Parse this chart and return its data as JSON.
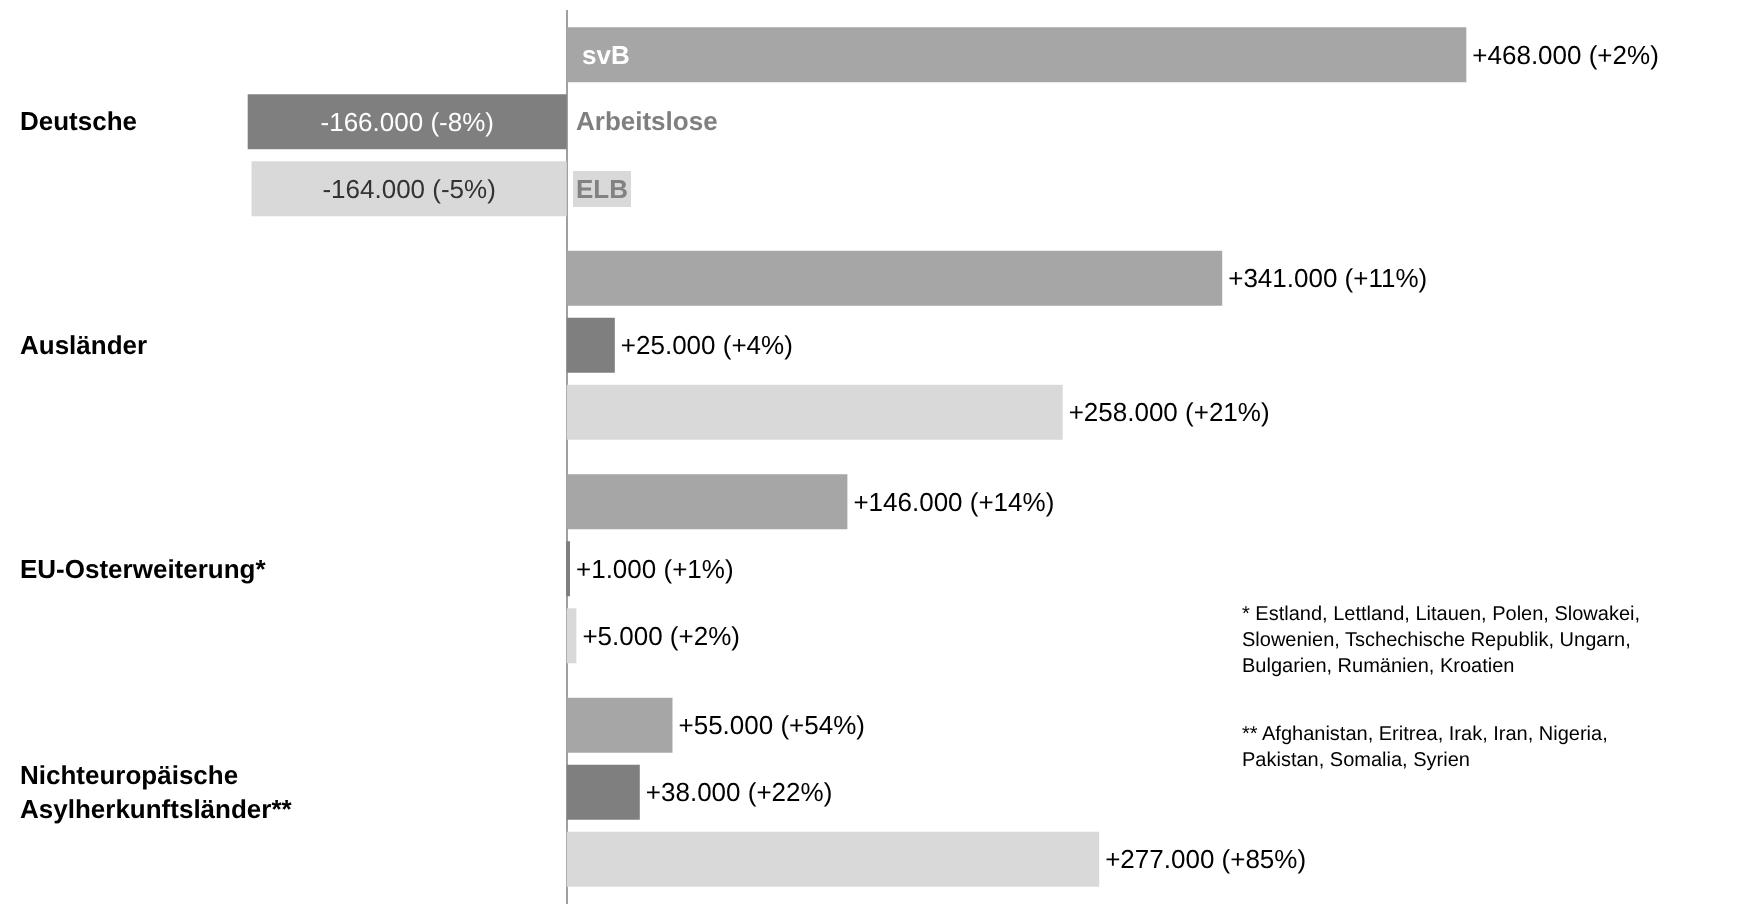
{
  "chart_data": {
    "type": "bar",
    "orientation": "horizontal",
    "categories": [
      "Deutsche",
      "Ausländer",
      "EU-Osterweiterung*",
      "Nichteuropäische Asylherkunftsländer**"
    ],
    "series": [
      {
        "name": "svB",
        "color": "#a6a6a6",
        "values": [
          468000,
          341000,
          146000,
          55000
        ],
        "value_labels": [
          "+468.000 (+2%)",
          "+341.000 (+11%)",
          "+146.000 (+14%)",
          "+55.000 (+54%)"
        ]
      },
      {
        "name": "Arbeitslose",
        "color": "#7f7f7f",
        "values": [
          -166000,
          25000,
          1000,
          38000
        ],
        "value_labels": [
          "-166.000 (-8%)",
          "+25.000 (+4%)",
          "+1.000 (+1%)",
          "+38.000 (+22%)"
        ]
      },
      {
        "name": "ELB",
        "color": "#d9d9d9",
        "values": [
          -164000,
          258000,
          5000,
          277000
        ],
        "value_labels": [
          "-164.000 (-5%)",
          "+258.000 (+21%)",
          "+5.000 (+2%)",
          "+277.000 (+85%)"
        ]
      }
    ],
    "tick_labels": false,
    "legend": false,
    "annotations": [
      "* Estland, Lettland, Litauen, Polen, Slowakei, Slowenien, Tschechische Republik, Ungarn, Bulgarien, Rumänien, Kroatien",
      "** Afghanistan, Eritrea, Irak, Iran, Nigeria, Pakistan, Somalia, Syrien"
    ]
  }
}
